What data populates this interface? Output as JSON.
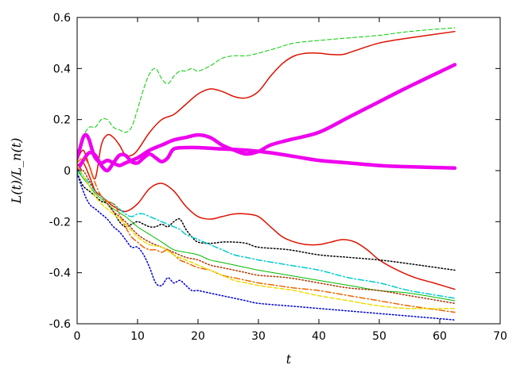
{
  "chart_data": {
    "type": "line",
    "xlabel": "t",
    "ylabel": "L(t)/L_n(t)",
    "xlim": [
      0,
      70
    ],
    "ylim": [
      -0.6,
      0.6
    ],
    "xticks": [
      0,
      10,
      20,
      30,
      40,
      50,
      60,
      70
    ],
    "yticks": [
      -0.6,
      -0.4,
      -0.2,
      0,
      0.2,
      0.4,
      0.6
    ],
    "x_tick_labels": [
      "0",
      "10",
      "20",
      "30",
      "40",
      "50",
      "60",
      "70"
    ],
    "y_tick_labels": [
      "-0.6",
      "-0.4",
      "-0.2",
      "0",
      "0.2",
      "0.4",
      "0.6"
    ],
    "grid": false,
    "series": [
      {
        "color": "#00cc00",
        "dash": "dashed",
        "width": 1,
        "x": [
          0,
          1,
          2,
          3,
          4,
          5,
          6,
          7,
          8,
          9,
          10,
          11,
          12,
          13,
          14,
          15,
          16,
          17,
          18,
          19,
          20,
          22,
          24,
          26,
          28,
          30,
          33,
          36,
          40,
          45,
          50,
          55,
          62.5
        ],
        "y": [
          0.03,
          0.13,
          0.17,
          0.17,
          0.2,
          0.2,
          0.17,
          0.16,
          0.15,
          0.17,
          0.24,
          0.32,
          0.38,
          0.4,
          0.36,
          0.34,
          0.37,
          0.39,
          0.39,
          0.4,
          0.39,
          0.41,
          0.44,
          0.45,
          0.45,
          0.46,
          0.48,
          0.5,
          0.51,
          0.52,
          0.53,
          0.545,
          0.56
        ]
      },
      {
        "color": "#dd1100",
        "dash": "solid",
        "width": 1.5,
        "x": [
          0,
          1,
          2,
          3,
          4,
          5,
          6,
          7,
          8,
          9,
          10,
          12,
          14,
          16,
          18,
          20,
          22,
          24,
          26,
          28,
          30,
          32,
          34,
          36,
          38,
          40,
          42,
          44,
          46,
          50,
          55,
          62.5
        ],
        "y": [
          0.04,
          0.08,
          0.02,
          -0.03,
          0.1,
          0.14,
          0.13,
          0.1,
          0.06,
          0.06,
          0.08,
          0.15,
          0.2,
          0.22,
          0.26,
          0.3,
          0.32,
          0.31,
          0.29,
          0.285,
          0.31,
          0.37,
          0.42,
          0.45,
          0.46,
          0.46,
          0.455,
          0.455,
          0.47,
          0.5,
          0.52,
          0.545
        ]
      },
      {
        "color": "#dd1100",
        "dash": "solid",
        "width": 1.5,
        "x": [
          0,
          1,
          2,
          3,
          4,
          5,
          6,
          8,
          10,
          12,
          14,
          16,
          18,
          20,
          22,
          24,
          26,
          28,
          30,
          32,
          34,
          36,
          38,
          40,
          42,
          44,
          46,
          48,
          50,
          53,
          56,
          59,
          62.5
        ],
        "y": [
          0.02,
          0.03,
          -0.02,
          -0.08,
          -0.1,
          -0.12,
          -0.14,
          -0.16,
          -0.13,
          -0.07,
          -0.05,
          -0.08,
          -0.14,
          -0.18,
          -0.19,
          -0.18,
          -0.17,
          -0.17,
          -0.18,
          -0.22,
          -0.26,
          -0.28,
          -0.29,
          -0.29,
          -0.28,
          -0.27,
          -0.28,
          -0.31,
          -0.35,
          -0.39,
          -0.42,
          -0.44,
          -0.465
        ]
      },
      {
        "color": "#ee00ee",
        "dash": "solid",
        "width": 4.5,
        "x": [
          0,
          0.5,
          1,
          1.5,
          2,
          2.5,
          3,
          4,
          5,
          6,
          7,
          8,
          10,
          12,
          14,
          16,
          18,
          20,
          22,
          24,
          26,
          28,
          30,
          32,
          35,
          40,
          45,
          50,
          55,
          62.5
        ],
        "y": [
          0.05,
          0.09,
          0.13,
          0.14,
          0.12,
          0.08,
          0.05,
          0.03,
          0.04,
          0.03,
          0.02,
          0.03,
          0.05,
          0.08,
          0.1,
          0.12,
          0.13,
          0.14,
          0.13,
          0.1,
          0.08,
          0.065,
          0.075,
          0.1,
          0.12,
          0.15,
          0.21,
          0.27,
          0.33,
          0.415
        ]
      },
      {
        "color": "#ee00ee",
        "dash": "solid",
        "width": 4.5,
        "x": [
          0,
          1,
          2,
          3,
          4,
          5,
          6,
          7,
          8,
          9,
          10,
          11,
          12,
          13,
          14,
          15,
          16,
          18,
          20,
          24,
          28,
          32,
          36,
          40,
          45,
          50,
          55,
          62.5
        ],
        "y": [
          0.0,
          0.04,
          0.07,
          0.06,
          0.02,
          0.0,
          0.03,
          0.06,
          0.06,
          0.035,
          0.03,
          0.05,
          0.065,
          0.05,
          0.035,
          0.05,
          0.085,
          0.09,
          0.09,
          0.085,
          0.08,
          0.07,
          0.055,
          0.04,
          0.03,
          0.02,
          0.015,
          0.01
        ]
      },
      {
        "color": "#000000",
        "dash": "dotted",
        "width": 1.5,
        "x": [
          0,
          1,
          2,
          3,
          4,
          5,
          6,
          7,
          8,
          9,
          10,
          11,
          12,
          13,
          14,
          15,
          16,
          17,
          18,
          19,
          20,
          22,
          24,
          26,
          28,
          30,
          35,
          40,
          45,
          50,
          55,
          62.5
        ],
        "y": [
          -0.01,
          -0.06,
          -0.08,
          -0.1,
          -0.12,
          -0.13,
          -0.16,
          -0.2,
          -0.22,
          -0.21,
          -0.2,
          -0.21,
          -0.22,
          -0.22,
          -0.21,
          -0.22,
          -0.2,
          -0.19,
          -0.23,
          -0.26,
          -0.28,
          -0.285,
          -0.28,
          -0.28,
          -0.285,
          -0.3,
          -0.31,
          -0.33,
          -0.34,
          -0.35,
          -0.365,
          -0.39
        ]
      },
      {
        "color": "#00cccc",
        "dash": "dashdot",
        "width": 1.5,
        "x": [
          0,
          1,
          2,
          3,
          4,
          5,
          6,
          7,
          8,
          9,
          10,
          11,
          12,
          13,
          14,
          15,
          16,
          17,
          18,
          20,
          22,
          24,
          26,
          28,
          30,
          35,
          40,
          45,
          50,
          55,
          62.5
        ],
        "y": [
          0.0,
          -0.02,
          -0.05,
          -0.08,
          -0.1,
          -0.12,
          -0.13,
          -0.15,
          -0.17,
          -0.18,
          -0.17,
          -0.17,
          -0.18,
          -0.19,
          -0.2,
          -0.21,
          -0.22,
          -0.23,
          -0.25,
          -0.27,
          -0.29,
          -0.31,
          -0.33,
          -0.34,
          -0.35,
          -0.37,
          -0.39,
          -0.42,
          -0.44,
          -0.47,
          -0.5
        ]
      },
      {
        "color": "#00bb00",
        "dash": "solid",
        "width": 1,
        "x": [
          0,
          1,
          2,
          3,
          4,
          5,
          6,
          8,
          10,
          12,
          14,
          16,
          18,
          20,
          22,
          24,
          26,
          28,
          30,
          35,
          40,
          45,
          50,
          55,
          62.5
        ],
        "y": [
          0.0,
          -0.03,
          -0.06,
          -0.09,
          -0.11,
          -0.13,
          -0.15,
          -0.18,
          -0.22,
          -0.25,
          -0.28,
          -0.31,
          -0.32,
          -0.33,
          -0.35,
          -0.36,
          -0.37,
          -0.38,
          -0.39,
          -0.41,
          -0.43,
          -0.45,
          -0.47,
          -0.48,
          -0.51
        ]
      },
      {
        "color": "#aa3300",
        "dash": "dotted",
        "width": 1.5,
        "x": [
          0,
          1,
          2,
          3,
          4,
          5,
          6,
          8,
          10,
          12,
          14,
          16,
          18,
          20,
          22,
          24,
          26,
          28,
          30,
          35,
          40,
          45,
          50,
          55,
          62.5
        ],
        "y": [
          0.01,
          0.0,
          -0.04,
          -0.08,
          -0.1,
          -0.13,
          -0.16,
          -0.2,
          -0.25,
          -0.28,
          -0.3,
          -0.32,
          -0.34,
          -0.35,
          -0.37,
          -0.38,
          -0.39,
          -0.4,
          -0.41,
          -0.42,
          -0.44,
          -0.46,
          -0.47,
          -0.49,
          -0.52
        ]
      },
      {
        "color": "#ee6600",
        "dash": "dashdot",
        "width": 1.5,
        "x": [
          0,
          1,
          2,
          3,
          4,
          5,
          6,
          7,
          8,
          9,
          10,
          11,
          12,
          13,
          14,
          15,
          16,
          17,
          18,
          20,
          22,
          24,
          26,
          28,
          30,
          33,
          36,
          40,
          45,
          50,
          55,
          62.5
        ],
        "y": [
          0.03,
          0.05,
          0.02,
          -0.05,
          -0.1,
          -0.12,
          -0.13,
          -0.17,
          -0.22,
          -0.26,
          -0.28,
          -0.3,
          -0.31,
          -0.31,
          -0.32,
          -0.31,
          -0.33,
          -0.35,
          -0.36,
          -0.38,
          -0.39,
          -0.41,
          -0.42,
          -0.43,
          -0.44,
          -0.45,
          -0.46,
          -0.47,
          -0.49,
          -0.51,
          -0.53,
          -0.555
        ]
      },
      {
        "color": "#eedd00",
        "dash": "dashed",
        "width": 1.5,
        "x": [
          0,
          1,
          2,
          3,
          4,
          5,
          6,
          8,
          10,
          12,
          14,
          16,
          18,
          20,
          22,
          24,
          26,
          28,
          30,
          33,
          36,
          40,
          45,
          50,
          55,
          62.5
        ],
        "y": [
          0.02,
          -0.02,
          -0.06,
          -0.1,
          -0.13,
          -0.15,
          -0.17,
          -0.21,
          -0.26,
          -0.29,
          -0.3,
          -0.33,
          -0.35,
          -0.37,
          -0.39,
          -0.41,
          -0.43,
          -0.44,
          -0.45,
          -0.46,
          -0.47,
          -0.49,
          -0.51,
          -0.53,
          -0.54,
          -0.54
        ]
      },
      {
        "color": "#0000cc",
        "dash": "dotted",
        "width": 1.5,
        "x": [
          0,
          1,
          2,
          3,
          4,
          5,
          6,
          7,
          8,
          9,
          10,
          11,
          12,
          13,
          14,
          15,
          16,
          17,
          18,
          19,
          20,
          22,
          24,
          26,
          28,
          30,
          35,
          40,
          45,
          50,
          55,
          62.5
        ],
        "y": [
          -0.01,
          -0.08,
          -0.13,
          -0.15,
          -0.17,
          -0.19,
          -0.22,
          -0.24,
          -0.27,
          -0.3,
          -0.3,
          -0.33,
          -0.38,
          -0.44,
          -0.45,
          -0.42,
          -0.44,
          -0.43,
          -0.45,
          -0.47,
          -0.47,
          -0.48,
          -0.49,
          -0.5,
          -0.51,
          -0.52,
          -0.53,
          -0.54,
          -0.55,
          -0.56,
          -0.57,
          -0.585
        ]
      }
    ]
  }
}
